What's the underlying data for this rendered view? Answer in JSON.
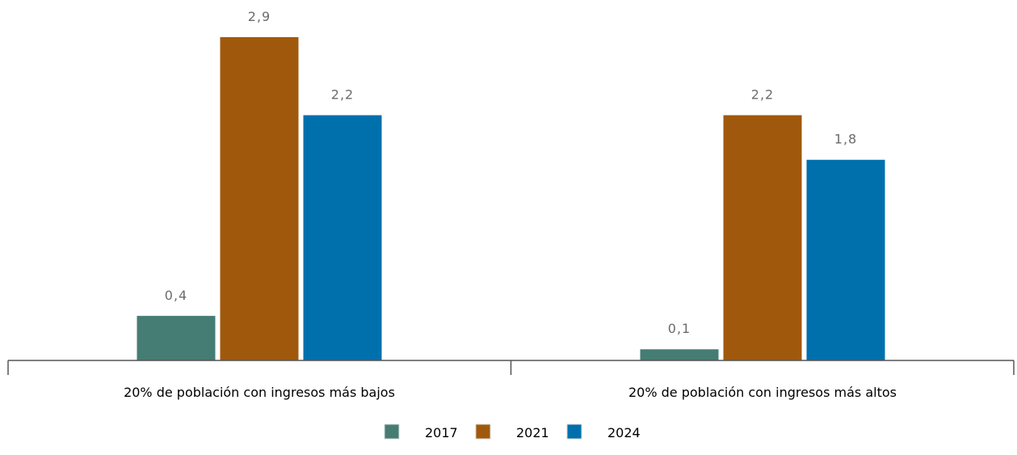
{
  "chart_data": {
    "type": "bar",
    "categories": [
      "20% de población con ingresos más bajos",
      "20% de población con ingresos más altos"
    ],
    "series": [
      {
        "name": "2017",
        "values": [
          0.4,
          0.1
        ],
        "labels": [
          "0,4",
          "0,1"
        ],
        "color": "#457D74"
      },
      {
        "name": "2021",
        "values": [
          2.9,
          2.2
        ],
        "labels": [
          "2,9",
          "2,2"
        ],
        "color": "#A0590C"
      },
      {
        "name": "2024",
        "values": [
          2.2,
          1.8
        ],
        "labels": [
          "2,2",
          "1,8"
        ],
        "color": "#0070AD"
      }
    ],
    "ylim": [
      0,
      2.9
    ],
    "grid": false,
    "legend_position": "bottom-center"
  },
  "colors": {
    "axis": "#555555",
    "data_label": "#6b6b6b",
    "category_label": "#000000",
    "legend_text": "#000000"
  }
}
